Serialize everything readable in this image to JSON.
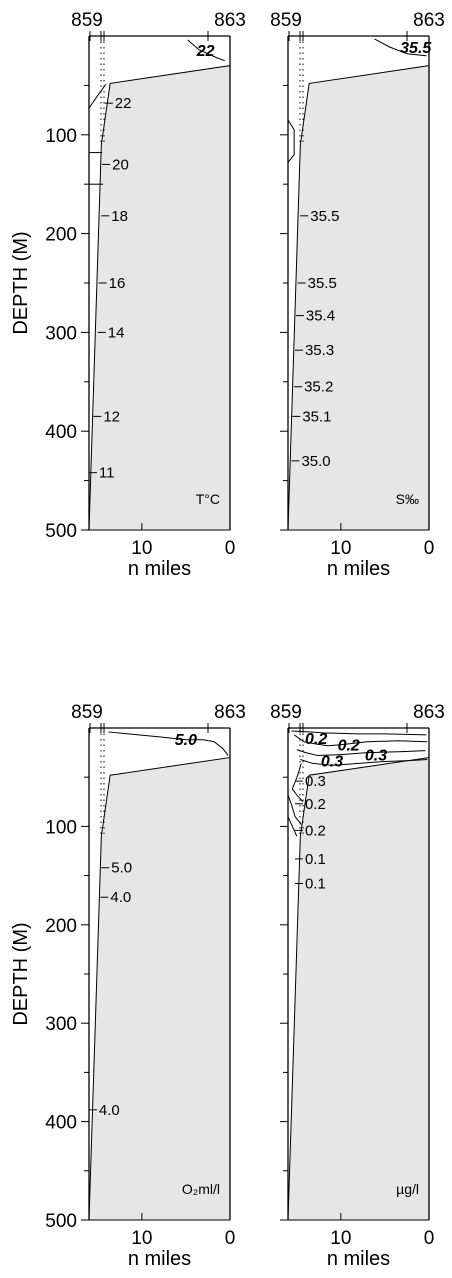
{
  "chart_data": [
    {
      "type": "contour",
      "panel": "temperature",
      "top_stations": [
        "859",
        "863"
      ],
      "ylabel": "DEPTH (M)",
      "xlabel": "n miles",
      "x_ticks": [
        "10",
        "0"
      ],
      "y_ticks": [
        "100",
        "200",
        "300",
        "400",
        "500"
      ],
      "unit_label": "T°C",
      "xlim": [
        16,
        0
      ],
      "ylim": [
        0,
        500
      ],
      "bottom_profile": [
        {
          "x": 16,
          "depth": 500
        },
        {
          "x": 14.6,
          "depth": 110
        },
        {
          "x": 13.6,
          "depth": 48
        },
        {
          "x": 0,
          "depth": 30
        }
      ],
      "contour_labels": [
        {
          "text": "22",
          "x": 4.0,
          "depth": 15,
          "bold": true
        },
        {
          "text": "22",
          "x": 13.3,
          "depth": 68
        },
        {
          "text": "20",
          "x": 13.6,
          "depth": 130
        },
        {
          "text": "18",
          "x": 13.7,
          "depth": 182
        },
        {
          "text": "16",
          "x": 14.0,
          "depth": 250
        },
        {
          "text": "14",
          "x": 14.1,
          "depth": 300
        },
        {
          "text": "12",
          "x": 14.6,
          "depth": 385
        },
        {
          "text": "11",
          "x": 15.1,
          "depth": 442
        }
      ]
    },
    {
      "type": "contour",
      "panel": "salinity",
      "top_stations": [
        "859",
        "863"
      ],
      "xlabel": "n miles",
      "x_ticks": [
        "10",
        "0"
      ],
      "unit_label": "S‰",
      "xlim": [
        16,
        0
      ],
      "ylim": [
        0,
        500
      ],
      "bottom_profile": [
        {
          "x": 16,
          "depth": 500
        },
        {
          "x": 14.6,
          "depth": 110
        },
        {
          "x": 13.6,
          "depth": 48
        },
        {
          "x": 0,
          "depth": 30
        }
      ],
      "contour_labels": [
        {
          "text": "35.5",
          "x": 3.5,
          "depth": 12,
          "bold": true
        },
        {
          "text": "35.5",
          "x": 13.7,
          "depth": 182
        },
        {
          "text": "35.5",
          "x": 14.0,
          "depth": 250
        },
        {
          "text": "35.4",
          "x": 14.2,
          "depth": 283
        },
        {
          "text": "35.3",
          "x": 14.3,
          "depth": 318
        },
        {
          "text": "35.2",
          "x": 14.4,
          "depth": 355
        },
        {
          "text": "35.1",
          "x": 14.6,
          "depth": 385
        },
        {
          "text": "35.0",
          "x": 14.7,
          "depth": 430
        }
      ]
    },
    {
      "type": "contour",
      "panel": "oxygen",
      "top_stations": [
        "859",
        "863"
      ],
      "ylabel": "DEPTH (M)",
      "xlabel": "n miles",
      "x_ticks": [
        "10",
        "0"
      ],
      "y_ticks": [
        "100",
        "200",
        "300",
        "400",
        "500"
      ],
      "unit_label": "O₂ml/l",
      "xlim": [
        16,
        0
      ],
      "ylim": [
        0,
        500
      ],
      "bottom_profile": [
        {
          "x": 16,
          "depth": 500
        },
        {
          "x": 14.6,
          "depth": 110
        },
        {
          "x": 13.6,
          "depth": 48
        },
        {
          "x": 0,
          "depth": 30
        }
      ],
      "contour_labels": [
        {
          "text": "5.0",
          "x": 6.5,
          "depth": 12,
          "bold": true
        },
        {
          "text": "5.0",
          "x": 13.7,
          "depth": 142
        },
        {
          "text": "4.0",
          "x": 13.8,
          "depth": 172
        },
        {
          "text": "4.0",
          "x": 15.1,
          "depth": 388
        }
      ]
    },
    {
      "type": "contour",
      "panel": "chlorophyll",
      "top_stations": [
        "859",
        "863"
      ],
      "xlabel": "n miles",
      "x_ticks": [
        "10",
        "0"
      ],
      "unit_label": "µg/l",
      "xlim": [
        16,
        0
      ],
      "ylim": [
        0,
        500
      ],
      "bottom_profile": [
        {
          "x": 16,
          "depth": 500
        },
        {
          "x": 14.6,
          "depth": 110
        },
        {
          "x": 13.6,
          "depth": 48
        },
        {
          "x": 0,
          "depth": 30
        }
      ],
      "contour_labels": [
        {
          "text": "0.2",
          "x": 14.3,
          "depth": 11,
          "bold": true
        },
        {
          "text": "0.2",
          "x": 10.6,
          "depth": 18,
          "bold": true
        },
        {
          "text": "0.3",
          "x": 12.5,
          "depth": 34,
          "bold": true
        },
        {
          "text": "0.3",
          "x": 7.5,
          "depth": 28,
          "bold": true
        },
        {
          "text": "0.3",
          "x": 14.3,
          "depth": 54
        },
        {
          "text": "0.2",
          "x": 14.3,
          "depth": 77
        },
        {
          "text": "0.2",
          "x": 14.3,
          "depth": 104
        },
        {
          "text": "0.1",
          "x": 14.3,
          "depth": 133
        },
        {
          "text": "0.1",
          "x": 14.3,
          "depth": 158
        }
      ]
    }
  ]
}
